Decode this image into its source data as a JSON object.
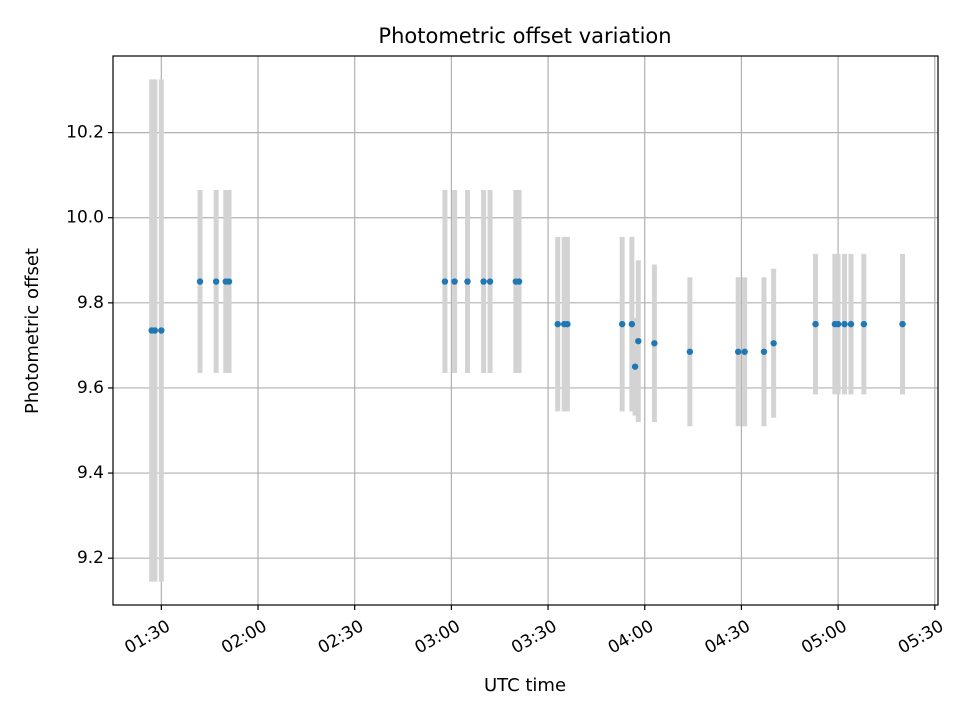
{
  "chart_data": {
    "type": "scatter",
    "title": "Photometric offset variation",
    "xlabel": "UTC time",
    "ylabel": "Photometric offset",
    "xlim": [
      "01:15",
      "05:31"
    ],
    "ylim": [
      9.09,
      10.38
    ],
    "x_ticks": [
      "01:30",
      "02:00",
      "02:30",
      "03:00",
      "03:30",
      "04:00",
      "04:30",
      "05:00",
      "05:30"
    ],
    "y_ticks": [
      "9.2",
      "9.4",
      "9.6",
      "9.8",
      "10.0",
      "10.2"
    ],
    "grid": true,
    "colors": {
      "points": "#1f77b4",
      "errorbars": "#d3d3d3",
      "grid": "#b0b0b0"
    },
    "series": [
      {
        "points": [
          {
            "x": "01:27",
            "y": 9.735,
            "err": 0.59
          },
          {
            "x": "01:28",
            "y": 9.735,
            "err": 0.59
          },
          {
            "x": "01:30",
            "y": 9.735,
            "err": 0.59
          },
          {
            "x": "01:42",
            "y": 9.85,
            "err": 0.215
          },
          {
            "x": "01:47",
            "y": 9.85,
            "err": 0.215
          },
          {
            "x": "01:50",
            "y": 9.85,
            "err": 0.215
          },
          {
            "x": "01:51",
            "y": 9.85,
            "err": 0.215
          },
          {
            "x": "02:58",
            "y": 9.85,
            "err": 0.215
          },
          {
            "x": "03:01",
            "y": 9.85,
            "err": 0.215
          },
          {
            "x": "03:05",
            "y": 9.85,
            "err": 0.215
          },
          {
            "x": "03:10",
            "y": 9.85,
            "err": 0.215
          },
          {
            "x": "03:12",
            "y": 9.85,
            "err": 0.215
          },
          {
            "x": "03:20",
            "y": 9.85,
            "err": 0.215
          },
          {
            "x": "03:21",
            "y": 9.85,
            "err": 0.215
          },
          {
            "x": "03:33",
            "y": 9.75,
            "err": 0.205
          },
          {
            "x": "03:35",
            "y": 9.75,
            "err": 0.205
          },
          {
            "x": "03:36",
            "y": 9.75,
            "err": 0.205
          },
          {
            "x": "03:53",
            "y": 9.75,
            "err": 0.205
          },
          {
            "x": "03:56",
            "y": 9.75,
            "err": 0.205
          },
          {
            "x": "03:57",
            "y": 9.65,
            "err": 0.115
          },
          {
            "x": "03:58",
            "y": 9.71,
            "err": 0.19
          },
          {
            "x": "04:03",
            "y": 9.705,
            "err": 0.185
          },
          {
            "x": "04:14",
            "y": 9.685,
            "err": 0.175
          },
          {
            "x": "04:29",
            "y": 9.685,
            "err": 0.175
          },
          {
            "x": "04:31",
            "y": 9.685,
            "err": 0.175
          },
          {
            "x": "04:37",
            "y": 9.685,
            "err": 0.175
          },
          {
            "x": "04:40",
            "y": 9.705,
            "err": 0.175
          },
          {
            "x": "04:53",
            "y": 9.75,
            "err": 0.165
          },
          {
            "x": "04:59",
            "y": 9.75,
            "err": 0.165
          },
          {
            "x": "05:00",
            "y": 9.75,
            "err": 0.165
          },
          {
            "x": "05:02",
            "y": 9.75,
            "err": 0.165
          },
          {
            "x": "05:04",
            "y": 9.75,
            "err": 0.165
          },
          {
            "x": "05:08",
            "y": 9.75,
            "err": 0.165
          },
          {
            "x": "05:20",
            "y": 9.75,
            "err": 0.165
          }
        ]
      }
    ]
  }
}
